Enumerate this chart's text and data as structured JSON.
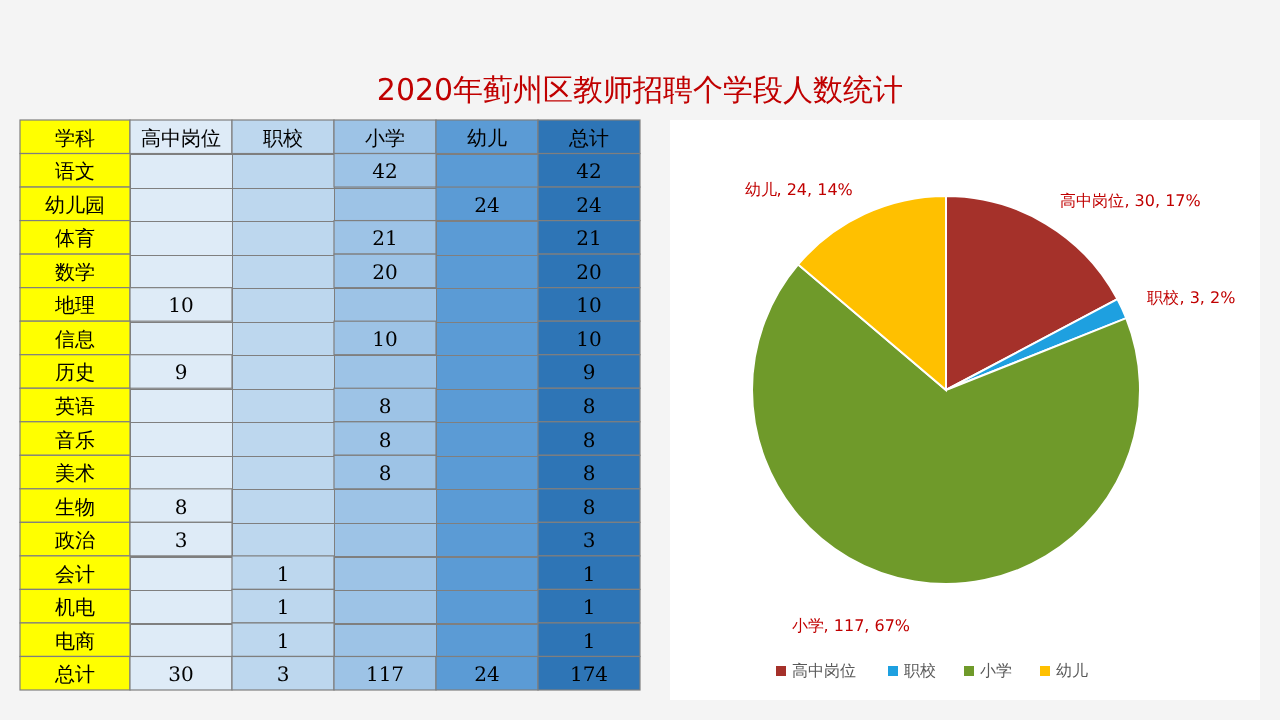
{
  "chart_data": [
    {
      "type": "heatmap",
      "title": "2020年蓟州区教师招聘个学段人数统计",
      "ylabel": "学科",
      "data_labels": true,
      "categories": [
        "高中岗位",
        "职校",
        "小学",
        "幼儿",
        "总计"
      ],
      "y_categories": [
        "语文",
        "幼儿园",
        "体育",
        "数学",
        "地理",
        "信息",
        "历史",
        "英语",
        "音乐",
        "美术",
        "生物",
        "政治",
        "会计",
        "机电",
        "电商",
        "总计"
      ],
      "colors": [
        "#deebf7",
        "#bdd7ee",
        "#9dc3e6",
        "#5b9bd5",
        "#2e75b6"
      ],
      "cells": [
        [
          null,
          null,
          42,
          null,
          42
        ],
        [
          null,
          null,
          null,
          24,
          24
        ],
        [
          null,
          null,
          21,
          null,
          21
        ],
        [
          null,
          null,
          20,
          null,
          20
        ],
        [
          10,
          null,
          null,
          null,
          10
        ],
        [
          null,
          null,
          10,
          null,
          10
        ],
        [
          9,
          null,
          null,
          null,
          9
        ],
        [
          null,
          null,
          8,
          null,
          8
        ],
        [
          null,
          null,
          8,
          null,
          8
        ],
        [
          null,
          null,
          8,
          null,
          8
        ],
        [
          8,
          null,
          null,
          null,
          8
        ],
        [
          3,
          null,
          null,
          null,
          3
        ],
        [
          null,
          1,
          null,
          null,
          1
        ],
        [
          null,
          1,
          null,
          null,
          1
        ],
        [
          null,
          1,
          null,
          null,
          1
        ],
        [
          30,
          3,
          117,
          24,
          174
        ]
      ]
    },
    {
      "type": "pie",
      "categories": [
        "高中岗位",
        "职校",
        "小学",
        "幼儿"
      ],
      "values": [
        30,
        3,
        117,
        24
      ],
      "colors": [
        "#a5312a",
        "#1ea0e0",
        "#6f9a2a",
        "#ffc000"
      ],
      "value_labels": [
        "高中岗位, 30, 17%",
        "职校, 3, 2%",
        "小学, 117, 67%",
        "幼儿, 24, 14%"
      ],
      "legend": "bottom"
    }
  ]
}
